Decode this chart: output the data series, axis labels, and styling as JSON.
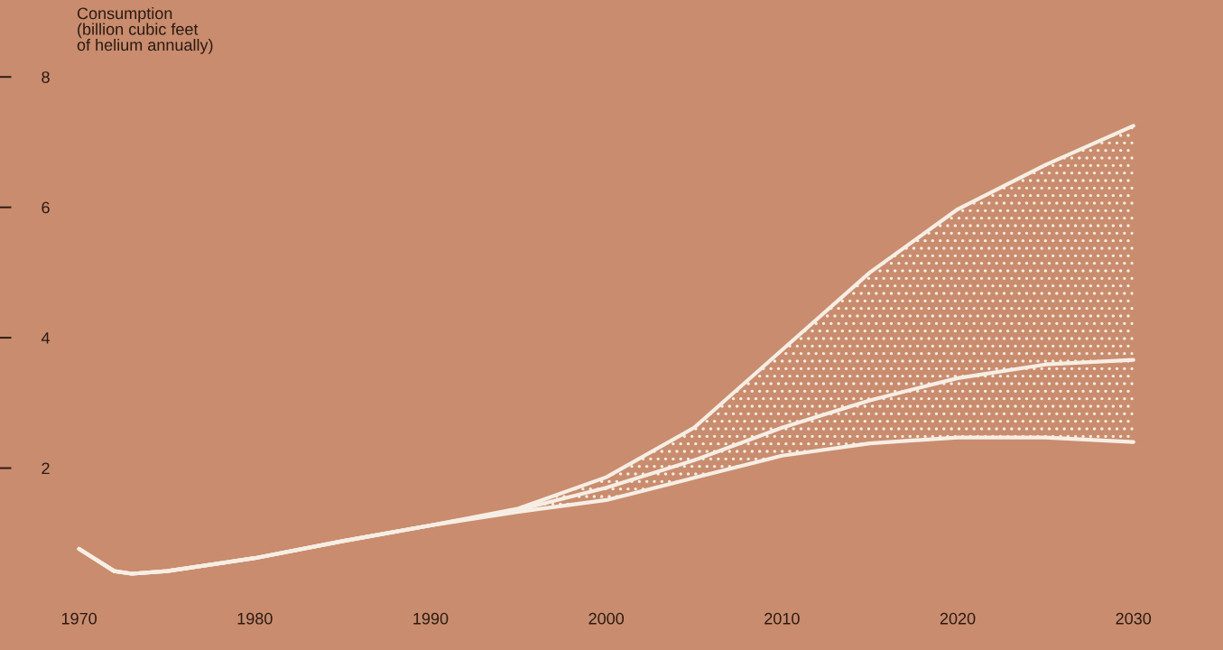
{
  "chart_data": {
    "type": "line",
    "ylabel": "Consumption\n(billion cubic feet\nof helium annually)",
    "x": [
      1970,
      1972,
      1973,
      1975,
      1980,
      1985,
      1990,
      1995,
      2000,
      2005,
      2010,
      2015,
      2020,
      2025,
      2030
    ],
    "series": [
      {
        "color": "#f6eee4",
        "values": [
          0.76,
          0.42,
          0.38,
          0.42,
          0.62,
          0.88,
          1.12,
          1.38,
          1.86,
          2.62,
          3.81,
          5.0,
          5.97,
          6.65,
          7.25
        ]
      },
      {
        "color": "#f6eee4",
        "values": [
          0.76,
          0.42,
          0.38,
          0.42,
          0.62,
          0.88,
          1.12,
          1.33,
          1.51,
          1.85,
          2.19,
          2.38,
          2.47,
          2.47,
          2.4
        ]
      },
      {
        "color": "#f6eee4",
        "values": [
          0.76,
          0.42,
          0.38,
          0.42,
          0.62,
          0.88,
          1.12,
          1.36,
          1.7,
          2.12,
          2.62,
          3.04,
          3.38,
          3.59,
          3.66
        ],
        "lower": [
          0.76,
          0.42,
          0.38,
          0.42,
          0.62,
          0.88,
          1.12,
          1.33,
          1.51,
          1.85,
          2.19,
          2.38,
          2.47,
          2.47,
          2.4
        ],
        "upper": [
          0.76,
          0.42,
          0.38,
          0.42,
          0.62,
          0.88,
          1.12,
          1.38,
          1.86,
          2.62,
          3.81,
          5.0,
          5.97,
          6.65,
          7.25
        ]
      }
    ],
    "xlim": [
      1965.5,
      2035.1
    ],
    "ylim": [
      -0.79,
      9.18
    ],
    "xticks": [
      1970,
      1980,
      1990,
      2000,
      2010,
      2020,
      2030
    ],
    "yticks": [
      2,
      4,
      6,
      8
    ],
    "grid": false,
    "legend": false,
    "marker": "none",
    "line_style": "solid"
  }
}
